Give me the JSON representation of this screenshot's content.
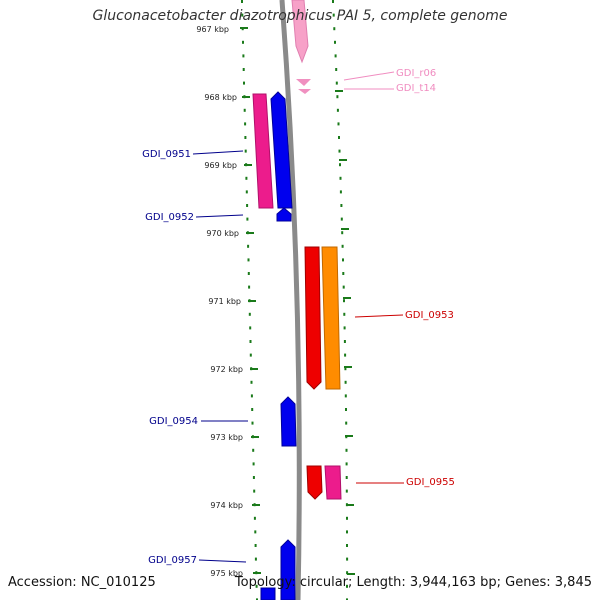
{
  "title": "Gluconacetobacter diazotrophicus PAI 5, complete genome",
  "footer": {
    "accession": "Accession: NC_010125",
    "summary": "Topology: circular; Length: 3,944,163 bp; Genes: 3,845"
  },
  "colors": {
    "backbone": "#8a8a8a",
    "tick": "#1a7a1a",
    "forward_cds": "#0000ee",
    "reverse_cds": "#ee0000",
    "trna": "#f7a1c8",
    "label_blue": "#00008b",
    "label_red": "#cc0000",
    "label_pink": "#f08cc0"
  },
  "ruler": {
    "unit": "kbp",
    "ticks": [
      "967 kbp",
      "968 kbp",
      "969 kbp",
      "970 kbp",
      "971 kbp",
      "972 kbp",
      "973 kbp",
      "974 kbp",
      "975 kbp"
    ]
  },
  "features": [
    {
      "label": "GDI_r06",
      "kind": "trna"
    },
    {
      "label": "GDI_t14",
      "kind": "trna"
    },
    {
      "label": "GDI_0951",
      "kind": "forward_cds"
    },
    {
      "label": "GDI_0952",
      "kind": "forward_cds"
    },
    {
      "label": "GDI_0953",
      "kind": "reverse_cds"
    },
    {
      "label": "GDI_0954",
      "kind": "forward_cds"
    },
    {
      "label": "GDI_0955",
      "kind": "reverse_cds"
    },
    {
      "label": "GDI_0957",
      "kind": "forward_cds"
    }
  ]
}
